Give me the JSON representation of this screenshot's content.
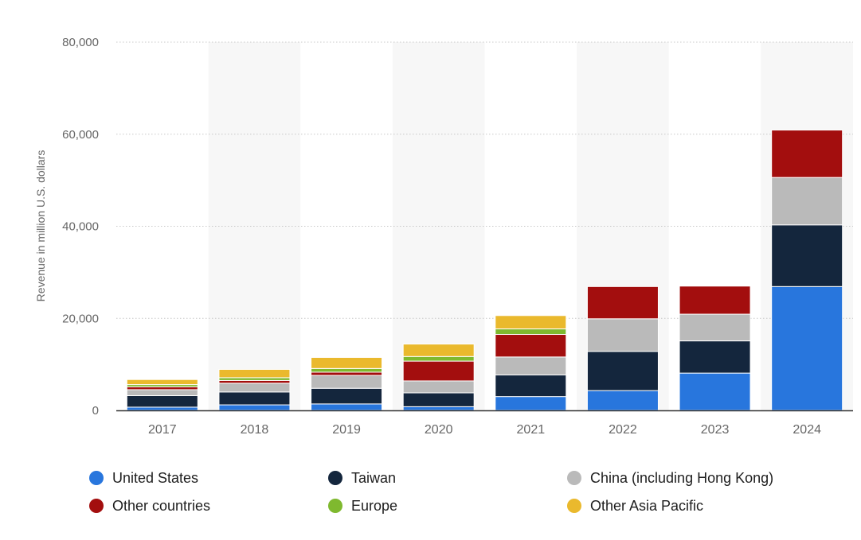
{
  "chart_data": {
    "type": "bar",
    "stacked": true,
    "title": "",
    "xlabel": "",
    "ylabel": "Revenue in million U.S. dollars",
    "ylim": [
      0,
      80000
    ],
    "yticks": [
      0,
      20000,
      40000,
      60000,
      80000
    ],
    "ytick_labels": [
      "0",
      "20,000",
      "40,000",
      "60,000",
      "80,000"
    ],
    "grid": true,
    "categories": [
      "2017",
      "2018",
      "2019",
      "2020",
      "2021",
      "2022",
      "2023",
      "2024"
    ],
    "series": [
      {
        "name": "United States",
        "color": "#2876dd",
        "values": [
          700,
          1200,
          1400,
          800,
          3000,
          4300,
          8100,
          26900
        ]
      },
      {
        "name": "Taiwan",
        "color": "#14263d",
        "values": [
          2500,
          2800,
          3400,
          3000,
          4700,
          8500,
          7000,
          13400
        ]
      },
      {
        "name": "China (including Hong Kong)",
        "color": "#bababa",
        "values": [
          1300,
          1900,
          2800,
          2600,
          3900,
          7100,
          5800,
          10300
        ]
      },
      {
        "name": "Other countries",
        "color": "#a30e0e",
        "values": [
          600,
          600,
          700,
          4300,
          4900,
          7000,
          6100,
          10300
        ]
      },
      {
        "name": "Europe",
        "color": "#7fb92f",
        "values": [
          500,
          600,
          800,
          1000,
          1200,
          0,
          0,
          0
        ]
      },
      {
        "name": "Other Asia Pacific",
        "color": "#eab92d",
        "values": [
          1100,
          1800,
          2400,
          2700,
          2900,
          0,
          0,
          0
        ]
      }
    ],
    "legend_position": "bottom"
  },
  "legend": {
    "items": [
      {
        "label": "United States",
        "color": "#2876dd"
      },
      {
        "label": "Taiwan",
        "color": "#14263d"
      },
      {
        "label": "China (including Hong Kong)",
        "color": "#bababa"
      },
      {
        "label": "Other countries",
        "color": "#a30e0e"
      },
      {
        "label": "Europe",
        "color": "#7fb92f"
      },
      {
        "label": "Other Asia Pacific",
        "color": "#eab92d"
      }
    ]
  }
}
